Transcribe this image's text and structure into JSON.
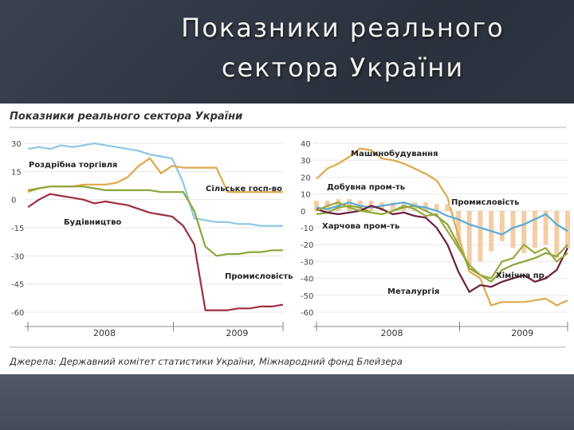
{
  "slide": {
    "title_line1": "Показники реального",
    "title_line2": "сектора України"
  },
  "figure": {
    "title": "Показники реального сектора України",
    "source": "Джерела: Державний комітет статистики України, Міжнародний фонд Блейзера"
  },
  "colors": {
    "background": "#343a47",
    "retail": "#8ec6e6",
    "agriculture": "#e0a84a",
    "construction": "#9c2f3f",
    "industry": "#8aa63c",
    "machinery": "#e0a84a",
    "mining": "#8aa63c",
    "food": "#5aaad8",
    "metallurgy": "#6b1e3e",
    "chemical": "#9aa93a",
    "industry_bar": "#f2c89a"
  },
  "chart_data": [
    {
      "type": "line",
      "xlabel_ticks": [
        "2008",
        "2009"
      ],
      "ylim": [
        -60,
        30
      ],
      "yticks": [
        "30",
        "15",
        "0",
        "-15",
        "-30",
        "-45",
        "-60"
      ],
      "x": [
        0,
        1,
        2,
        3,
        4,
        5,
        6,
        7,
        8,
        9,
        10,
        11,
        12,
        13,
        14,
        15,
        16,
        17,
        18,
        19,
        20,
        21,
        22,
        23
      ],
      "series": [
        {
          "name": "Роздрібна торгівля",
          "color_key": "retail",
          "values": [
            27,
            28,
            27,
            29,
            28,
            29,
            30,
            29,
            28,
            27,
            26,
            24,
            23,
            22,
            9,
            -10,
            -11,
            -12,
            -12,
            -13,
            -13,
            -14,
            -14,
            -14
          ]
        },
        {
          "name": "Сільське госп-во",
          "color_key": "agriculture",
          "values": [
            4,
            6,
            7,
            7,
            7,
            8,
            8,
            8,
            9,
            12,
            18,
            22,
            14,
            18,
            17,
            17,
            17,
            17,
            4,
            4,
            4,
            4,
            4,
            4
          ]
        },
        {
          "name": "Будівництво",
          "color_key": "construction",
          "values": [
            -4,
            0,
            3,
            2,
            1,
            0,
            -2,
            -1,
            -2,
            -3,
            -5,
            -7,
            -8,
            -9,
            -14,
            -24,
            -59,
            -59,
            -59,
            -58,
            -58,
            -57,
            -57,
            -56
          ]
        },
        {
          "name": "Промисловість",
          "color_key": "industry",
          "values": [
            5,
            6,
            7,
            7,
            7,
            7,
            6,
            5,
            5,
            5,
            5,
            5,
            4,
            4,
            4,
            -6,
            -25,
            -30,
            -29,
            -29,
            -28,
            -28,
            -27,
            -27
          ]
        }
      ]
    },
    {
      "type": "line",
      "xlabel_ticks": [
        "2008",
        "2009"
      ],
      "ylim": [
        -60,
        40
      ],
      "yticks": [
        "40",
        "30",
        "20",
        "10",
        "0",
        "-10",
        "-20",
        "-30",
        "-40",
        "-50",
        "-60"
      ],
      "x": [
        0,
        1,
        2,
        3,
        4,
        5,
        6,
        7,
        8,
        9,
        10,
        11,
        12,
        13,
        14,
        15,
        16,
        17,
        18,
        19,
        20,
        21,
        22,
        23
      ],
      "series": [
        {
          "name": "Машинобудування",
          "color_key": "machinery",
          "values": [
            19,
            25,
            28,
            32,
            37,
            36,
            31,
            30,
            28,
            25,
            22,
            18,
            8,
            -15,
            -36,
            -40,
            -56,
            -54,
            -54,
            -54,
            -53,
            -52,
            -56,
            -53
          ]
        },
        {
          "name": "Добувна пром-ть",
          "color_key": "mining",
          "values": [
            -2,
            -1,
            2,
            3,
            2,
            -1,
            -2,
            0,
            2,
            3,
            0,
            -3,
            -8,
            -20,
            -34,
            -38,
            -42,
            -35,
            -32,
            -30,
            -28,
            -25,
            -27,
            -20
          ]
        },
        {
          "name": "Харчова пром-ть",
          "color_key": "food",
          "values": [
            2,
            1,
            3,
            5,
            3,
            2,
            3,
            4,
            5,
            3,
            2,
            0,
            -3,
            -5,
            -8,
            -10,
            -12,
            -14,
            -10,
            -8,
            -5,
            -2,
            -8,
            -12
          ]
        },
        {
          "name": "Металургія",
          "color_key": "metallurgy",
          "values": [
            1,
            -1,
            -2,
            -1,
            0,
            3,
            1,
            -2,
            -1,
            -3,
            -4,
            -10,
            -20,
            -36,
            -48,
            -44,
            -45,
            -42,
            -40,
            -38,
            -42,
            -40,
            -35,
            -22
          ]
        },
        {
          "name": "Хімічна пр.",
          "color_key": "chemical",
          "values": [
            0,
            3,
            5,
            2,
            0,
            -1,
            -2,
            0,
            3,
            1,
            -3,
            -2,
            -12,
            -22,
            -32,
            -38,
            -40,
            -30,
            -28,
            -20,
            -25,
            -22,
            -30,
            -25
          ]
        },
        {
          "name": "Промисловість",
          "color_key": "industry_bar",
          "kind": "bar",
          "values": [
            6,
            6,
            7,
            7,
            6,
            6,
            5,
            5,
            5,
            5,
            5,
            4,
            4,
            -20,
            -32,
            -30,
            -24,
            -18,
            -22,
            -25,
            -22,
            -20,
            -28,
            -22
          ]
        }
      ]
    }
  ]
}
